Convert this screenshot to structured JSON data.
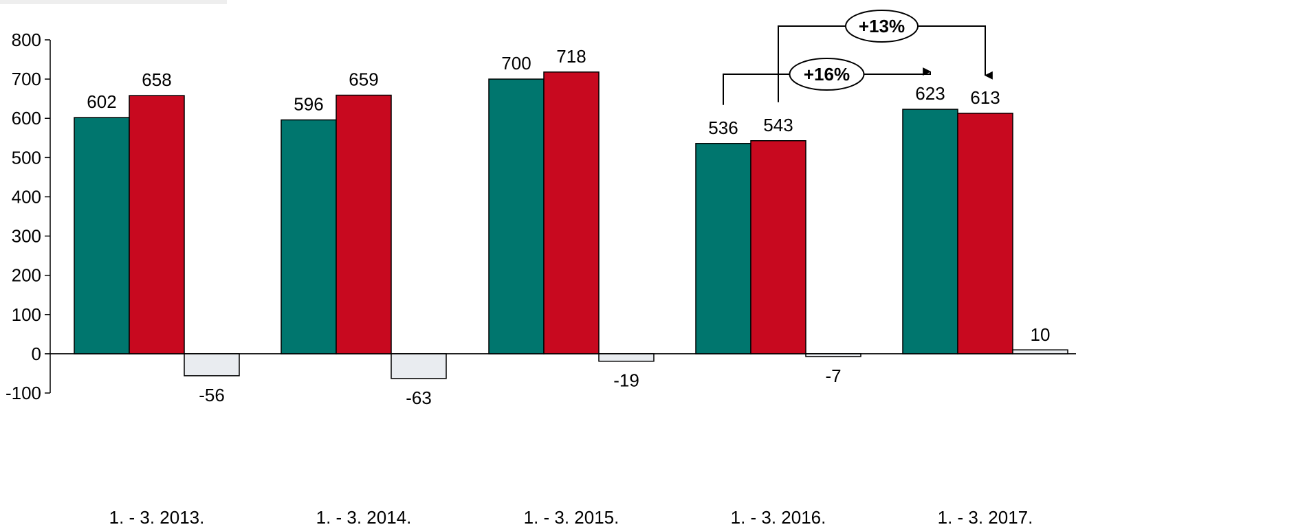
{
  "chart_data": {
    "type": "bar",
    "categories": [
      "1. - 3. 2013.",
      "1. - 3. 2014.",
      "1. - 3. 2015.",
      "1. - 3. 2016.",
      "1. - 3. 2017."
    ],
    "series": [
      {
        "values": [
          602,
          596,
          700,
          536,
          623
        ],
        "color": "#00766E"
      },
      {
        "values": [
          658,
          659,
          718,
          543,
          613
        ],
        "color": "#C8091F"
      },
      {
        "values": [
          -56,
          -63,
          -19,
          -7,
          10
        ],
        "color": "#E9ECF0"
      }
    ],
    "value_labels": [
      [
        "602",
        "596",
        "700",
        "536",
        "623"
      ],
      [
        "658",
        "659",
        "718",
        "543",
        "613"
      ],
      [
        "-56",
        "-63",
        "-19",
        "-7",
        "10"
      ]
    ],
    "ylim": [
      -100,
      800
    ],
    "yticks": [
      -100,
      0,
      100,
      200,
      300,
      400,
      500,
      600,
      700,
      800
    ],
    "ytick_labels": [
      "-100",
      "0",
      "100",
      "200",
      "300",
      "400",
      "500",
      "600",
      "700",
      "800"
    ],
    "title": "",
    "xlabel": "",
    "ylabel": "",
    "grid": false,
    "annotations": [
      {
        "label": "+13%",
        "from": {
          "category": 3,
          "series": 1
        },
        "to": {
          "category": 4,
          "series": 1
        }
      },
      {
        "label": "+16%",
        "from": {
          "category": 3,
          "series": 0
        },
        "to": {
          "category": 4,
          "series": 0
        }
      }
    ]
  }
}
